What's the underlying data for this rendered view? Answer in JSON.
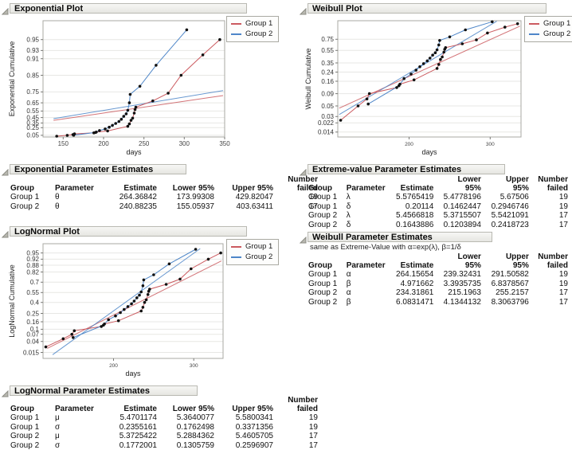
{
  "sections": {
    "exponential_plot": {
      "title": "Exponential Plot"
    },
    "exponential_estimates": {
      "title": "Exponential Parameter Estimates",
      "columns": [
        "Group",
        "Parameter",
        "Estimate",
        "Lower 95%",
        "Upper 95%",
        "Number\nfailed"
      ],
      "rows": [
        [
          "Group 1",
          "θ",
          "264.36842",
          "173.99308",
          "429.82047",
          "19"
        ],
        [
          "Group 2",
          "θ",
          "240.88235",
          "155.05937",
          "403.63411",
          "17"
        ]
      ]
    },
    "lognormal_plot": {
      "title": "LogNormal Plot"
    },
    "lognormal_estimates": {
      "title": "LogNormal Parameter Estimates",
      "columns": [
        "Group",
        "Parameter",
        "Estimate",
        "Lower 95%",
        "Upper 95%",
        "Number\nfailed"
      ],
      "rows": [
        [
          "Group 1",
          "μ",
          "5.4701174",
          "5.3640077",
          "5.5800341",
          "19"
        ],
        [
          "Group 1",
          "σ",
          "0.2355161",
          "0.1762498",
          "0.3371356",
          "19"
        ],
        [
          "Group 2",
          "μ",
          "5.3725422",
          "5.2884362",
          "5.4605705",
          "17"
        ],
        [
          "Group 2",
          "σ",
          "0.1772001",
          "0.1305759",
          "0.2596907",
          "17"
        ]
      ]
    },
    "weibull_plot": {
      "title": "Weibull Plot"
    },
    "extreme_value_estimates": {
      "title": "Extreme-value Parameter Estimates",
      "columns": [
        "Group",
        "Parameter",
        "Estimate",
        "Lower 95%",
        "Upper 95%",
        "Number\nfailed"
      ],
      "rows": [
        [
          "Group 1",
          "λ",
          "5.5765419",
          "5.4778196",
          "5.67506",
          "19"
        ],
        [
          "Group 1",
          "δ",
          "0.20114",
          "0.1462447",
          "0.2946746",
          "19"
        ],
        [
          "Group 2",
          "λ",
          "5.4566818",
          "5.3715507",
          "5.5421091",
          "17"
        ],
        [
          "Group 2",
          "δ",
          "0.1643886",
          "0.1203894",
          "0.2418723",
          "17"
        ]
      ]
    },
    "weibull_estimates": {
      "title": "Weibull Parameter Estimates",
      "note": "same as Extreme-Value with α=exp(λ), β=1/δ",
      "columns": [
        "Group",
        "Parameter",
        "Estimate",
        "Lower 95%",
        "Upper 95%",
        "Number\nfailed"
      ],
      "rows": [
        [
          "Group 1",
          "α",
          "264.15654",
          "239.32431",
          "291.50582",
          "19"
        ],
        [
          "Group 1",
          "β",
          "4.971662",
          "3.3935735",
          "6.8378567",
          "19"
        ],
        [
          "Group 2",
          "α",
          "234.31861",
          "215.1963",
          "255.2157",
          "17"
        ],
        [
          "Group 2",
          "β",
          "6.0831471",
          "4.1344132",
          "8.3063796",
          "17"
        ]
      ]
    }
  },
  "chart_data": {
    "groups": [
      {
        "name": "Group 1",
        "color": "#cb5a5f",
        "n_failed": 19,
        "points": [
          [
            142,
            0.025
          ],
          [
            155,
            0.05
          ],
          [
            162,
            0.07
          ],
          [
            164,
            0.09
          ],
          [
            188,
            0.12
          ],
          [
            191,
            0.14
          ],
          [
            205,
            0.17
          ],
          [
            230,
            0.28
          ],
          [
            232,
            0.33
          ],
          [
            234,
            0.4
          ],
          [
            236,
            0.44
          ],
          [
            238,
            0.52
          ],
          [
            239,
            0.57
          ],
          [
            240,
            0.6
          ],
          [
            261,
            0.67
          ],
          [
            280,
            0.74
          ],
          [
            296,
            0.85
          ],
          [
            323,
            0.92
          ],
          [
            344,
            0.95
          ]
        ]
      },
      {
        "name": "Group 2",
        "color": "#4e86c8",
        "n_failed": 17,
        "points": [
          [
            163,
            0.055
          ],
          [
            190,
            0.13
          ],
          [
            195,
            0.18
          ],
          [
            202,
            0.22
          ],
          [
            207,
            0.26
          ],
          [
            211,
            0.3
          ],
          [
            215,
            0.34
          ],
          [
            219,
            0.38
          ],
          [
            222,
            0.42
          ],
          [
            225,
            0.47
          ],
          [
            228,
            0.51
          ],
          [
            230,
            0.56
          ],
          [
            232,
            0.65
          ],
          [
            233,
            0.73
          ],
          [
            245,
            0.79
          ],
          [
            265,
            0.89
          ],
          [
            303,
            0.963
          ]
        ]
      }
    ],
    "charts": [
      {
        "id": "exponential",
        "type": "line",
        "title": "Exponential Plot",
        "xlabel": "days",
        "ylabel": "Exponential Cumulative",
        "x_scale": "linear",
        "y_transform": "exponential",
        "xlim": [
          125,
          350
        ],
        "x_ticks": [
          150,
          200,
          250,
          300,
          350
        ],
        "y_ticks": [
          0.05,
          0.25,
          0.35,
          0.45,
          0.55,
          0.65,
          0.75,
          0.85,
          0.91,
          0.93,
          0.95
        ],
        "ylim": [
          0.0,
          0.972
        ],
        "grid": true,
        "legend_position": "top-right",
        "legend": [
          "Group 1",
          "Group 2"
        ],
        "fit_lines": [
          {
            "group": "Group 1",
            "from": [
              138,
              0.4
            ],
            "to": [
              348,
              0.72
            ]
          },
          {
            "group": "Group 2",
            "from": [
              138,
              0.43
            ],
            "to": [
              348,
              0.76
            ]
          }
        ]
      },
      {
        "id": "weibull",
        "type": "line",
        "title": "Weibull Plot",
        "xlabel": "days",
        "ylabel": "Weibull Cumulative",
        "x_scale": "log",
        "y_transform": "weibull",
        "xlim": [
          140,
          350
        ],
        "x_ticks": [
          200,
          300
        ],
        "y_ticks": [
          0.014,
          0.022,
          0.03,
          0.05,
          0.09,
          0.16,
          0.24,
          0.35,
          0.55,
          0.75
        ],
        "ylim": [
          0.011,
          0.969
        ],
        "grid": true,
        "legend_position": "top-right",
        "legend": [
          "Group 1",
          "Group 2"
        ],
        "fit_lines": [
          {
            "group": "Group 1",
            "from": [
              141,
              0.045
            ],
            "to": [
              348,
              0.93
            ]
          },
          {
            "group": "Group 2",
            "from": [
              141,
              0.033
            ],
            "to": [
              310,
              0.966
            ]
          }
        ]
      },
      {
        "id": "lognormal",
        "type": "line",
        "title": "LogNormal Plot",
        "xlabel": "days",
        "ylabel": "LogNormal Cumulative",
        "x_scale": "log",
        "y_transform": "normal",
        "xlim": [
          140,
          348
        ],
        "x_ticks": [
          200,
          300
        ],
        "y_ticks": [
          0.015,
          0.04,
          0.07,
          0.1,
          0.16,
          0.25,
          0.4,
          0.55,
          0.7,
          0.82,
          0.88,
          0.92,
          0.95
        ],
        "ylim": [
          0.0082,
          0.9772
        ],
        "grid": true,
        "legend_position": "top-right",
        "legend": [
          "Group 1",
          "Group 2"
        ],
        "fit_lines": [
          {
            "group": "Group 1",
            "from": [
              143,
              0.022
            ],
            "to": [
              345,
              0.91
            ]
          },
          {
            "group": "Group 2",
            "from": [
              147,
              0.012
            ],
            "to": [
              310,
              0.965
            ]
          }
        ]
      }
    ]
  }
}
